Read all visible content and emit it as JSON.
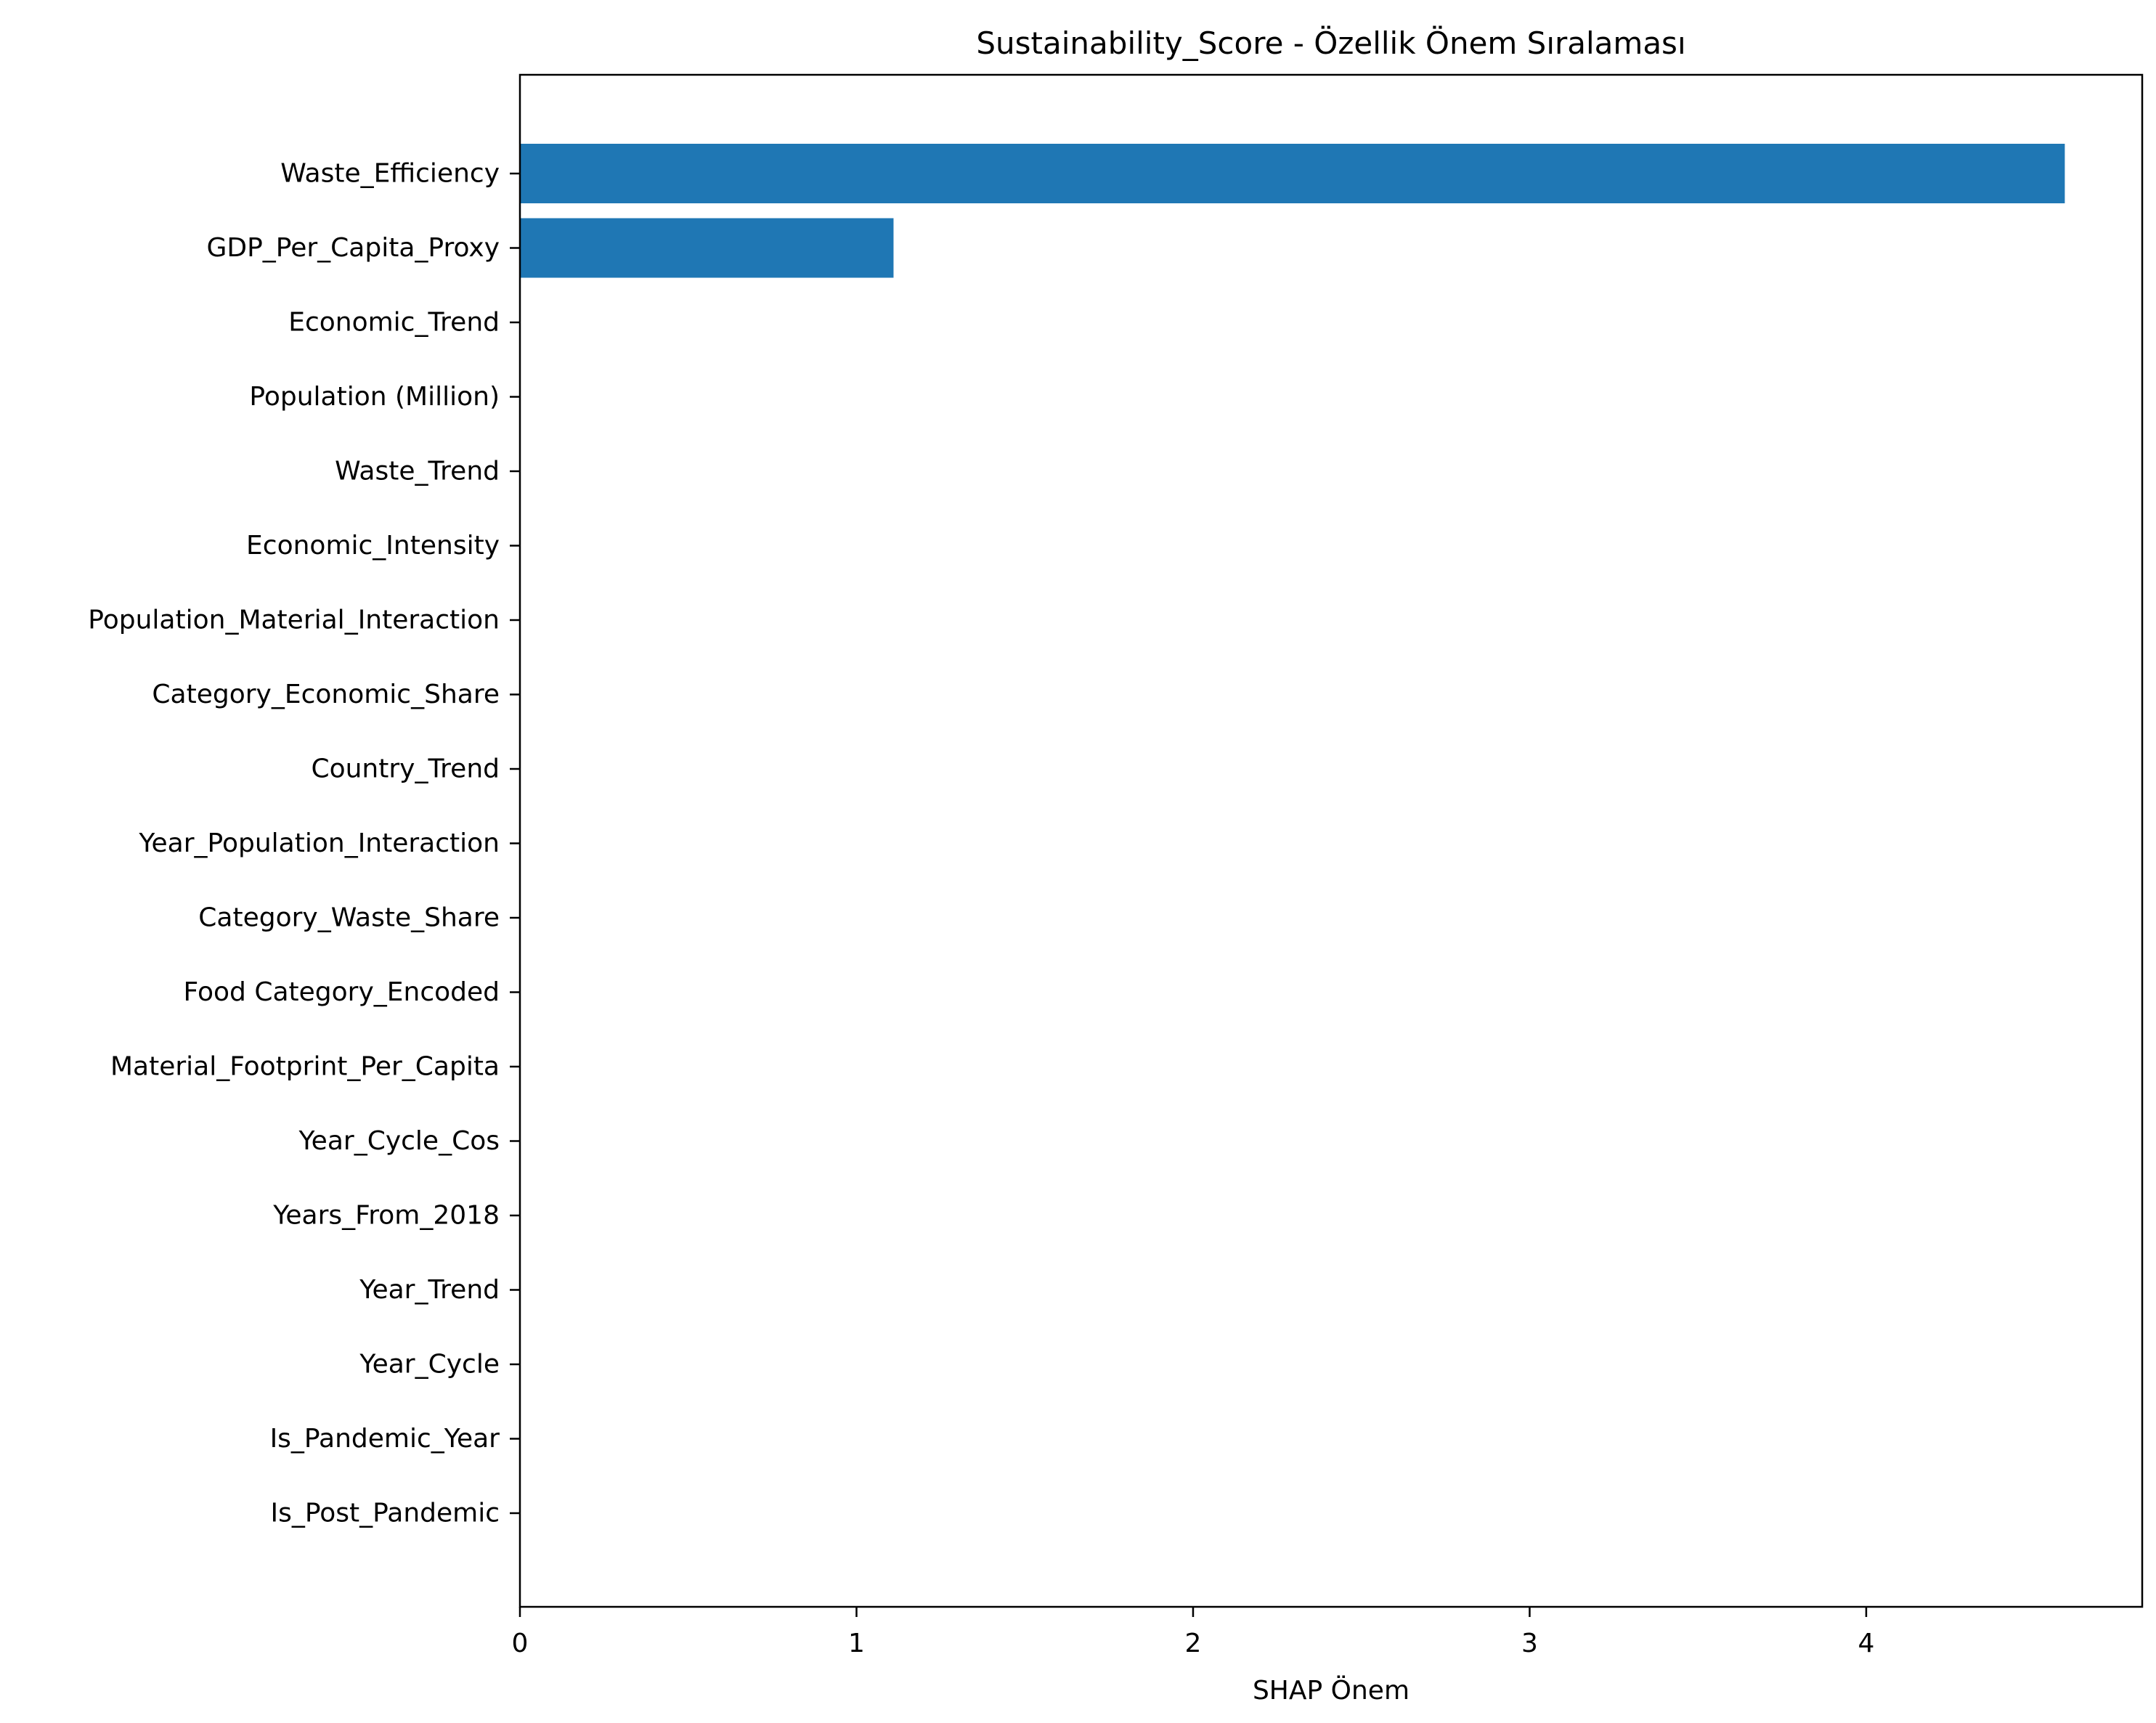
{
  "chart_data": {
    "type": "bar",
    "orientation": "horizontal",
    "title": "Sustainability_Score - Özellik Önem Sıralaması",
    "xlabel": "SHAP Önem",
    "ylabel": "",
    "xlim": [
      0,
      4.82
    ],
    "xticks": [
      "0",
      "1",
      "2",
      "3",
      "4"
    ],
    "grid": false,
    "bar_color": "#1f77b4",
    "categories": [
      "Waste_Efficiency",
      "GDP_Per_Capita_Proxy",
      "Economic_Trend",
      "Population (Million)",
      "Waste_Trend",
      "Economic_Intensity",
      "Population_Material_Interaction",
      "Category_Economic_Share",
      "Country_Trend",
      "Year_Population_Interaction",
      "Category_Waste_Share",
      "Food Category_Encoded",
      "Material_Footprint_Per_Capita",
      "Year_Cycle_Cos",
      "Years_From_2018",
      "Year_Trend",
      "Year_Cycle",
      "Is_Pandemic_Year",
      "Is_Post_Pandemic"
    ],
    "values": [
      4.59,
      1.11,
      0,
      0,
      0,
      0,
      0,
      0,
      0,
      0,
      0,
      0,
      0,
      0,
      0,
      0,
      0,
      0,
      0
    ]
  }
}
